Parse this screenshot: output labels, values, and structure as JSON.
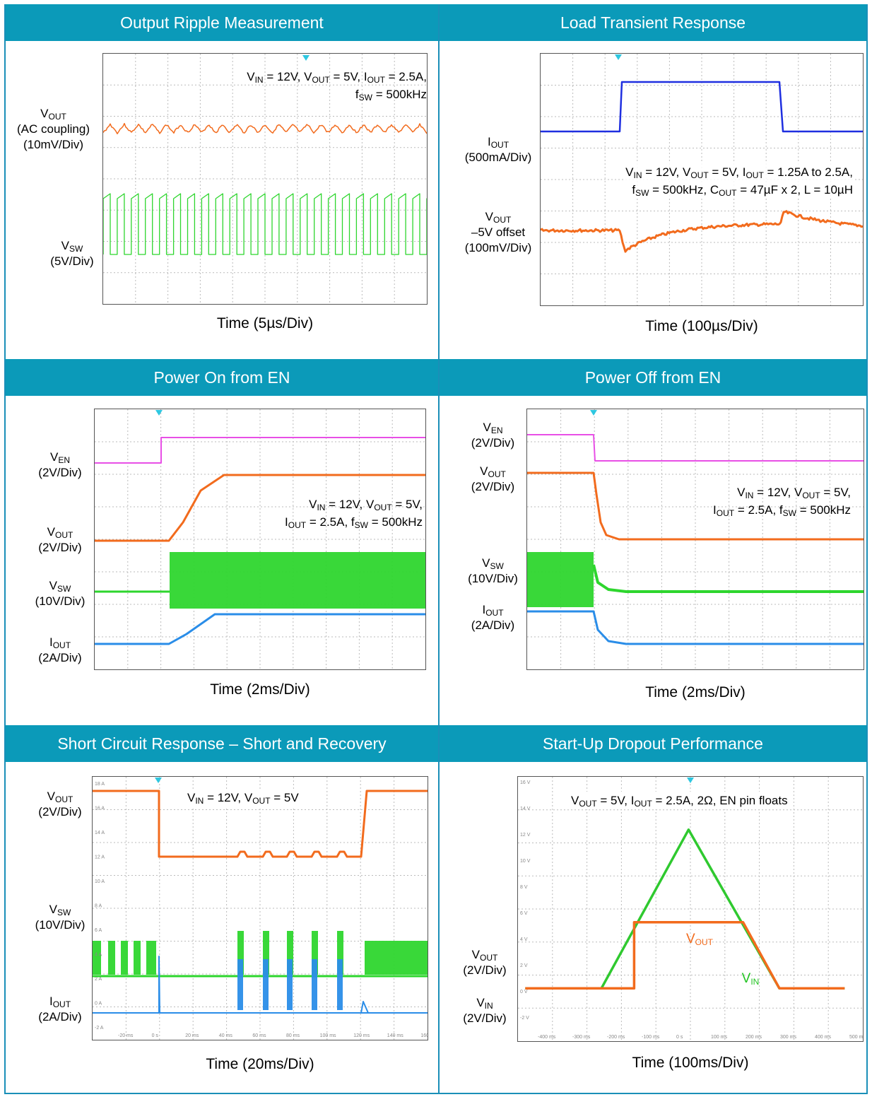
{
  "panels": {
    "p1": {
      "title": "Output Ripple Measurement",
      "time": "Time (5µs/Div)",
      "vout": {
        "name": "V",
        "sub": "OUT",
        "l2": "(AC coupling)",
        "l3": "(10mV/Div)"
      },
      "vsw": {
        "name": "V",
        "sub": "SW",
        "l2": "(5V/Div)"
      },
      "note": [
        {
          "pre": "V",
          "s1": "IN",
          "a": " = 12V, V",
          "s2": "OUT",
          "b": " = 5V, I",
          "s3": "OUT",
          "c": " = 2.5A,"
        },
        {
          "pre": "f",
          "s1": "SW",
          "a": " = 500kHz"
        }
      ]
    },
    "p2": {
      "title": "Load Transient Response",
      "time": "Time (100µs/Div)",
      "iout": {
        "name": "I",
        "sub": "OUT",
        "l2": "(500mA/Div)"
      },
      "vout": {
        "name": "V",
        "sub": "OUT",
        "l2": "–5V offset",
        "l3": "(100mV/Div)"
      },
      "note": [
        {
          "pre": "V",
          "s1": "IN",
          "a": " = 12V, V",
          "s2": "OUT",
          "b": " = 5V, I",
          "s3": "OUT",
          "c": " = 1.25A to 2.5A,"
        },
        {
          "pre": "f",
          "s1": "SW",
          "a": " = 500kHz, C",
          "s2": "OUT",
          "b": " = 47µF x 2, L = 10µH"
        }
      ]
    },
    "p3": {
      "title": "Power On from EN",
      "time": "Time (2ms/Div)",
      "ven": {
        "name": "V",
        "sub": "EN",
        "l2": "(2V/Div)"
      },
      "vout": {
        "name": "V",
        "sub": "OUT",
        "l2": "(2V/Div)"
      },
      "vsw": {
        "name": "V",
        "sub": "SW",
        "l2": "(10V/Div)"
      },
      "iout": {
        "name": "I",
        "sub": "OUT",
        "l2": "(2A/Div)"
      },
      "note": [
        {
          "pre": "V",
          "s1": "IN",
          "a": " = 12V, V",
          "s2": "OUT",
          "b": " = 5V,"
        },
        {
          "pre": "I",
          "s1": "OUT",
          "a": " = 2.5A, f",
          "s2": "SW",
          "b": " = 500kHz"
        }
      ]
    },
    "p4": {
      "title": "Power Off from EN",
      "time": "Time (2ms/Div)",
      "ven": {
        "name": "V",
        "sub": "EN",
        "l2": "(2V/Div)"
      },
      "vout": {
        "name": "V",
        "sub": "OUT",
        "l2": "(2V/Div)"
      },
      "vsw": {
        "name": "V",
        "sub": "SW",
        "l2": "(10V/Div)"
      },
      "iout": {
        "name": "I",
        "sub": "OUT",
        "l2": "(2A/Div)"
      },
      "note": [
        {
          "pre": "V",
          "s1": "IN",
          "a": " = 12V, V",
          "s2": "OUT",
          "b": " = 5V,"
        },
        {
          "pre": "I",
          "s1": "OUT",
          "a": " = 2.5A, f",
          "s2": "SW",
          "b": " = 500kHz"
        }
      ]
    },
    "p5": {
      "title": "Short Circuit Response – Short and Recovery",
      "time": "Time (20ms/Div)",
      "vout": {
        "name": "V",
        "sub": "OUT",
        "l2": "(2V/Div)"
      },
      "vsw": {
        "name": "V",
        "sub": "SW",
        "l2": "(10V/Div)"
      },
      "iout": {
        "name": "I",
        "sub": "OUT",
        "l2": "(2A/Div)"
      },
      "note": [
        {
          "pre": "V",
          "s1": "IN",
          "a": " = 12V, V",
          "s2": "OUT",
          "b": " = 5V"
        }
      ],
      "yticks": [
        "18 A",
        "16 A",
        "14 A",
        "12 A",
        "10 A",
        "8 A",
        "6 A",
        "4 A",
        "2 A",
        "0 A",
        "-2 A"
      ],
      "xticks": [
        "-20 ms",
        "0 s",
        "20 ms",
        "40 ms",
        "60 ms",
        "80 ms",
        "100 ms",
        "120 ms",
        "140 ms",
        "160 ms"
      ]
    },
    "p6": {
      "title": "Start-Up Dropout Performance",
      "time": "Time (100ms/Div)",
      "vout": {
        "name": "V",
        "sub": "OUT",
        "l2": "(2V/Div)"
      },
      "vin": {
        "name": "V",
        "sub": "IN",
        "l2": "(2V/Div)"
      },
      "note": [
        {
          "pre": "V",
          "s1": "OUT",
          "a": " = 5V, I",
          "s2": "OUT",
          "b": " = 2.5A, 2Ω, EN pin floats"
        }
      ],
      "trace_vin": {
        "name": "V",
        "sub": "IN"
      },
      "trace_vout": {
        "name": "V",
        "sub": "OUT"
      },
      "yticks": [
        "16 V",
        "14 V",
        "12 V",
        "10 V",
        "8 V",
        "6 V",
        "4 V",
        "2 V",
        "0 V",
        "-2 V",
        "-4 V"
      ],
      "xticks": [
        "-400 ms",
        "-300 ms",
        "-200 ms",
        "-100 ms",
        "0 s",
        "100 ms",
        "200 ms",
        "300 ms",
        "400 ms",
        "500 ms"
      ]
    }
  },
  "colors": {
    "banner": "#0b9ab9",
    "frame": "#1a8fb8",
    "vout": "#f26b1d",
    "vsw": "#2ed62e",
    "ven": "#e84fe6",
    "iout": "#2a8de8",
    "iload": "#1f2fe0",
    "grid": "#bbbbbb"
  },
  "chart_data": [
    {
      "type": "line",
      "title": "Output Ripple Measurement",
      "xlabel": "Time (5µs/Div)",
      "series": [
        {
          "name": "VOUT (AC coupling)",
          "scale": "10mV/Div"
        },
        {
          "name": "VSW",
          "scale": "5V/Div"
        }
      ],
      "annotation": "VIN = 12V, VOUT = 5V, IOUT = 2.5A, fSW = 500kHz"
    },
    {
      "type": "line",
      "title": "Load Transient Response",
      "xlabel": "Time (100µs/Div)",
      "series": [
        {
          "name": "IOUT",
          "scale": "500mA/Div",
          "values_A": [
            1.25,
            2.5,
            1.25
          ]
        },
        {
          "name": "VOUT –5V offset",
          "scale": "100mV/Div"
        }
      ],
      "annotation": "VIN = 12V, VOUT = 5V, IOUT = 1.25A to 2.5A, fSW = 500kHz, COUT = 47µF x 2, L = 10µH"
    },
    {
      "type": "line",
      "title": "Power On from EN",
      "xlabel": "Time (2ms/Div)",
      "series": [
        {
          "name": "VEN",
          "scale": "2V/Div"
        },
        {
          "name": "VOUT",
          "scale": "2V/Div",
          "final_V": 5
        },
        {
          "name": "VSW",
          "scale": "10V/Div"
        },
        {
          "name": "IOUT",
          "scale": "2A/Div",
          "final_A": 2.5
        }
      ],
      "annotation": "VIN = 12V, VOUT = 5V, IOUT = 2.5A, fSW = 500kHz"
    },
    {
      "type": "line",
      "title": "Power Off from EN",
      "xlabel": "Time (2ms/Div)",
      "series": [
        {
          "name": "VEN",
          "scale": "2V/Div"
        },
        {
          "name": "VOUT",
          "scale": "2V/Div"
        },
        {
          "name": "VSW",
          "scale": "10V/Div"
        },
        {
          "name": "IOUT",
          "scale": "2A/Div"
        }
      ],
      "annotation": "VIN = 12V, VOUT = 5V, IOUT = 2.5A, fSW = 500kHz"
    },
    {
      "type": "line",
      "title": "Short Circuit Response – Short and Recovery",
      "xlabel": "Time (20ms/Div)",
      "x_ms": [
        -20,
        160
      ],
      "short_start_ms": 0,
      "recovery_ms": 120,
      "series": [
        {
          "name": "VOUT",
          "scale": "2V/Div"
        },
        {
          "name": "VSW",
          "scale": "10V/Div"
        },
        {
          "name": "IOUT",
          "scale": "2A/Div"
        }
      ],
      "annotation": "VIN = 12V, VOUT = 5V"
    },
    {
      "type": "line",
      "title": "Start-Up Dropout Performance",
      "xlabel": "Time (100ms/Div)",
      "ylim": [
        -4,
        16
      ],
      "series": [
        {
          "name": "VIN",
          "x_ms": [
            -430,
            -220,
            20,
            270,
            450
          ],
          "y_V": [
            0,
            0,
            12,
            0,
            0
          ]
        },
        {
          "name": "VOUT",
          "x_ms": [
            -430,
            -130,
            -130,
            170,
            270,
            450
          ],
          "y_V": [
            0,
            0,
            5,
            5,
            0,
            0
          ]
        }
      ],
      "annotation": "VOUT = 5V, IOUT = 2.5A, 2Ω, EN pin floats"
    }
  ]
}
